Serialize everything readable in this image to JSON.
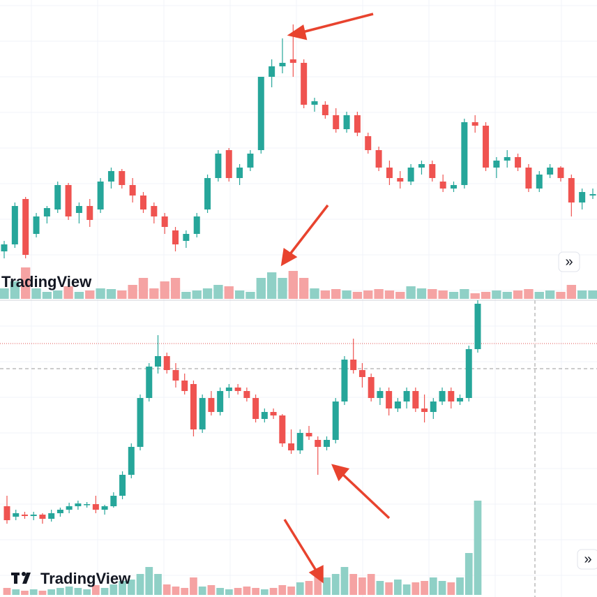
{
  "chart_data": [
    {
      "type": "candlestick",
      "up_color": "#26a69a",
      "down_color": "#ef5350",
      "volume_up_color": "#8fd0c6",
      "volume_down_color": "#f5a3a3",
      "ylim": [
        0,
        430
      ],
      "vlim": [
        0,
        55
      ],
      "watermark": "TradingView",
      "scroll_button": "»",
      "ohlc": [
        [
          70,
          85,
          60,
          80
        ],
        [
          80,
          140,
          75,
          135
        ],
        [
          145,
          148,
          60,
          65
        ],
        [
          95,
          125,
          90,
          120
        ],
        [
          120,
          135,
          110,
          132
        ],
        [
          130,
          170,
          125,
          165
        ],
        [
          165,
          168,
          115,
          120
        ],
        [
          125,
          140,
          110,
          135
        ],
        [
          135,
          145,
          105,
          115
        ],
        [
          130,
          175,
          125,
          170
        ],
        [
          170,
          190,
          160,
          185
        ],
        [
          185,
          188,
          160,
          165
        ],
        [
          165,
          175,
          140,
          150
        ],
        [
          150,
          155,
          125,
          130
        ],
        [
          135,
          140,
          110,
          120
        ],
        [
          120,
          125,
          95,
          105
        ],
        [
          100,
          105,
          70,
          80
        ],
        [
          85,
          100,
          75,
          95
        ],
        [
          95,
          125,
          90,
          120
        ],
        [
          130,
          180,
          125,
          175
        ],
        [
          175,
          215,
          170,
          210
        ],
        [
          215,
          218,
          170,
          175
        ],
        [
          175,
          195,
          165,
          190
        ],
        [
          190,
          215,
          185,
          210
        ],
        [
          215,
          320,
          210,
          320
        ],
        [
          320,
          345,
          305,
          335
        ],
        [
          335,
          375,
          325,
          340
        ],
        [
          345,
          395,
          320,
          340
        ],
        [
          340,
          345,
          275,
          280
        ],
        [
          280,
          290,
          270,
          285
        ],
        [
          280,
          285,
          260,
          265
        ],
        [
          265,
          275,
          240,
          245
        ],
        [
          245,
          270,
          240,
          265
        ],
        [
          265,
          270,
          235,
          240
        ],
        [
          235,
          240,
          210,
          215
        ],
        [
          215,
          220,
          185,
          190
        ],
        [
          190,
          200,
          165,
          175
        ],
        [
          175,
          185,
          160,
          170
        ],
        [
          170,
          195,
          165,
          190
        ],
        [
          190,
          200,
          180,
          195
        ],
        [
          195,
          200,
          170,
          175
        ],
        [
          170,
          180,
          155,
          160
        ],
        [
          160,
          170,
          155,
          165
        ],
        [
          165,
          260,
          160,
          255
        ],
        [
          255,
          265,
          240,
          250
        ],
        [
          250,
          255,
          185,
          190
        ],
        [
          190,
          205,
          175,
          200
        ],
        [
          200,
          215,
          190,
          205
        ],
        [
          205,
          210,
          185,
          190
        ],
        [
          190,
          195,
          155,
          160
        ],
        [
          160,
          185,
          155,
          180
        ],
        [
          180,
          195,
          175,
          190
        ],
        [
          190,
          192,
          170,
          175
        ],
        [
          175,
          180,
          120,
          140
        ],
        [
          140,
          160,
          130,
          155
        ],
        [
          150,
          160,
          145,
          152
        ]
      ],
      "volume": [
        15,
        25,
        45,
        15,
        10,
        12,
        18,
        10,
        12,
        15,
        14,
        12,
        20,
        30,
        15,
        25,
        30,
        10,
        12,
        15,
        20,
        18,
        12,
        10,
        30,
        38,
        30,
        40,
        30,
        15,
        12,
        14,
        12,
        10,
        12,
        14,
        12,
        10,
        18,
        15,
        14,
        12,
        10,
        14,
        8,
        10,
        12,
        10,
        12,
        14,
        10,
        12,
        10,
        20,
        12,
        12
      ]
    },
    {
      "type": "candlestick",
      "up_color": "#26a69a",
      "down_color": "#ef5350",
      "volume_up_color": "#8fd0c6",
      "volume_down_color": "#f5a3a3",
      "ylim": [
        0,
        425
      ],
      "vlim": [
        0,
        150
      ],
      "watermark": "TradingView",
      "scroll_button": "»",
      "ohlc": [
        [
          130,
          145,
          105,
          110
        ],
        [
          115,
          125,
          110,
          120
        ],
        [
          118,
          122,
          112,
          116
        ],
        [
          116,
          122,
          110,
          118
        ],
        [
          118,
          120,
          105,
          112
        ],
        [
          112,
          125,
          108,
          120
        ],
        [
          120,
          128,
          115,
          125
        ],
        [
          125,
          135,
          120,
          130
        ],
        [
          130,
          138,
          125,
          134
        ],
        [
          132,
          136,
          128,
          133
        ],
        [
          133,
          145,
          120,
          125
        ],
        [
          125,
          132,
          118,
          130
        ],
        [
          130,
          150,
          128,
          145
        ],
        [
          145,
          180,
          140,
          175
        ],
        [
          175,
          220,
          170,
          215
        ],
        [
          215,
          290,
          210,
          285
        ],
        [
          285,
          335,
          280,
          330
        ],
        [
          330,
          375,
          320,
          345
        ],
        [
          345,
          350,
          320,
          325
        ],
        [
          325,
          335,
          300,
          310
        ],
        [
          310,
          320,
          290,
          295
        ],
        [
          305,
          310,
          230,
          240
        ],
        [
          240,
          290,
          235,
          285
        ],
        [
          285,
          295,
          260,
          265
        ],
        [
          265,
          300,
          260,
          295
        ],
        [
          295,
          305,
          285,
          300
        ],
        [
          300,
          305,
          290,
          295
        ],
        [
          295,
          300,
          280,
          285
        ],
        [
          285,
          290,
          250,
          255
        ],
        [
          255,
          270,
          250,
          265
        ],
        [
          265,
          270,
          255,
          260
        ],
        [
          260,
          262,
          215,
          220
        ],
        [
          220,
          240,
          205,
          210
        ],
        [
          210,
          240,
          205,
          235
        ],
        [
          235,
          245,
          225,
          230
        ],
        [
          225,
          230,
          175,
          215
        ],
        [
          215,
          230,
          210,
          225
        ],
        [
          225,
          285,
          220,
          280
        ],
        [
          280,
          345,
          275,
          340
        ],
        [
          340,
          370,
          320,
          325
        ],
        [
          325,
          335,
          300,
          315
        ],
        [
          315,
          320,
          280,
          285
        ],
        [
          285,
          300,
          275,
          295
        ],
        [
          295,
          300,
          260,
          270
        ],
        [
          270,
          285,
          265,
          280
        ],
        [
          280,
          300,
          270,
          295
        ],
        [
          295,
          300,
          265,
          270
        ],
        [
          270,
          290,
          250,
          265
        ],
        [
          265,
          285,
          255,
          280
        ],
        [
          280,
          300,
          275,
          295
        ],
        [
          295,
          300,
          270,
          280
        ],
        [
          280,
          290,
          275,
          285
        ],
        [
          285,
          360,
          280,
          355
        ],
        [
          355,
          425,
          350,
          420
        ]
      ],
      "volume": [
        10,
        8,
        6,
        8,
        6,
        8,
        10,
        12,
        10,
        8,
        14,
        10,
        15,
        20,
        22,
        30,
        40,
        30,
        15,
        12,
        10,
        25,
        12,
        14,
        10,
        8,
        10,
        12,
        10,
        8,
        10,
        14,
        12,
        18,
        20,
        35,
        25,
        30,
        40,
        30,
        25,
        30,
        20,
        18,
        22,
        15,
        18,
        20,
        25,
        20,
        18,
        25,
        60,
        135
      ]
    }
  ]
}
